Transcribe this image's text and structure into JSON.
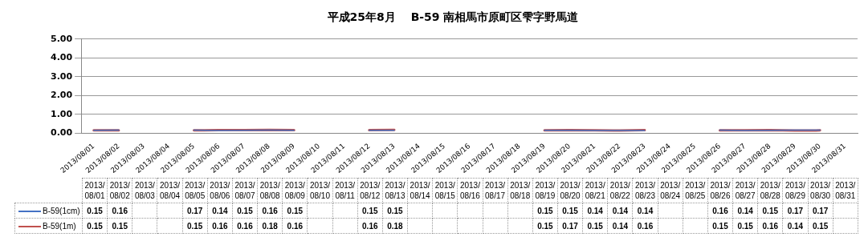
{
  "chart_data": {
    "type": "line",
    "title": "平成25年8月　 B-59 南相馬市原町区雫字野馬道",
    "categories": [
      "2013/08/01",
      "2013/08/02",
      "2013/08/03",
      "2013/08/04",
      "2013/08/05",
      "2013/08/06",
      "2013/08/07",
      "2013/08/08",
      "2013/08/09",
      "2013/08/10",
      "2013/08/11",
      "2013/08/12",
      "2013/08/13",
      "2013/08/14",
      "2013/08/15",
      "2013/08/16",
      "2013/08/17",
      "2013/08/18",
      "2013/08/19",
      "2013/08/20",
      "2013/08/21",
      "2013/08/22",
      "2013/08/23",
      "2013/08/24",
      "2013/08/25",
      "2013/08/26",
      "2013/08/27",
      "2013/08/28",
      "2013/08/29",
      "2013/08/30",
      "2013/08/31"
    ],
    "series": [
      {
        "name": "B-59(1cm)",
        "color": "#4472c4",
        "values": [
          0.15,
          0.16,
          null,
          null,
          0.17,
          0.14,
          0.15,
          0.16,
          0.15,
          null,
          null,
          0.15,
          0.15,
          null,
          null,
          null,
          null,
          null,
          0.15,
          0.15,
          0.14,
          0.14,
          0.14,
          null,
          null,
          0.16,
          0.14,
          0.15,
          0.17,
          0.17,
          null
        ]
      },
      {
        "name": "B-59(1m)",
        "color": "#c0504d",
        "values": [
          0.15,
          0.15,
          null,
          null,
          0.15,
          0.16,
          0.16,
          0.18,
          0.16,
          null,
          null,
          0.16,
          0.18,
          null,
          null,
          null,
          null,
          null,
          0.15,
          0.17,
          0.15,
          0.14,
          0.16,
          null,
          null,
          0.15,
          0.15,
          0.16,
          0.14,
          0.15,
          null
        ]
      }
    ],
    "ylim": [
      0,
      5
    ],
    "yticks": [
      {
        "value": 0,
        "label": "0.00"
      },
      {
        "value": 1,
        "label": "1.00"
      },
      {
        "value": 2,
        "label": "2.00"
      },
      {
        "value": 3,
        "label": "3.00"
      },
      {
        "value": 4,
        "label": "4.00"
      },
      {
        "value": 5,
        "label": "5.00"
      }
    ],
    "grid": "y",
    "legend": "bottom left",
    "marker": "none",
    "line_style": "solid",
    "data_labels": true
  }
}
